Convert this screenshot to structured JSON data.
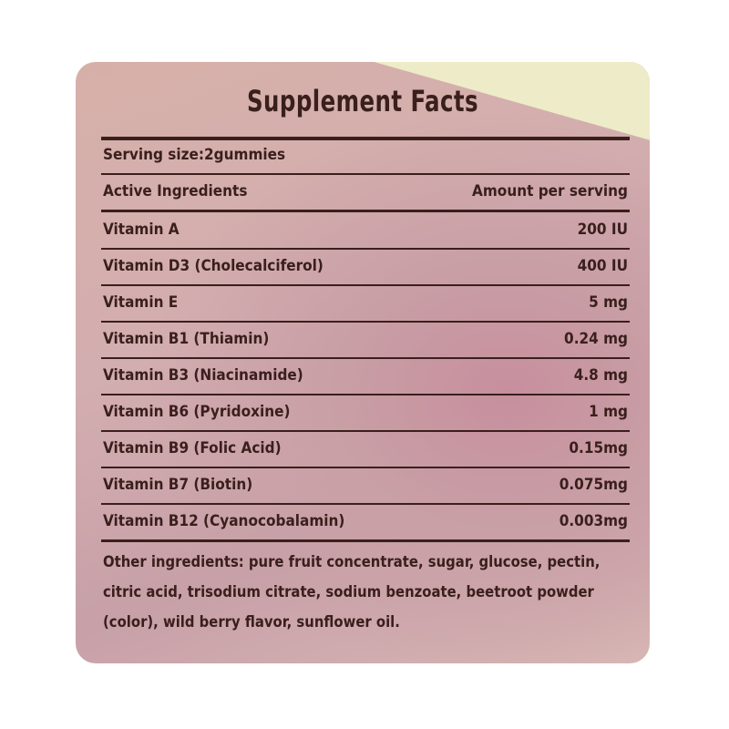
{
  "title": "Supplement Facts",
  "serving_size": "Serving size:2gummies",
  "header": {
    "ingredient": "Active Ingredients",
    "amount": "Amount per serving"
  },
  "ingredients": [
    {
      "name": "Vitamin A",
      "amount": "200 IU"
    },
    {
      "name": "Vitamin D3 (Cholecalciferol)",
      "amount": "400 IU"
    },
    {
      "name": "Vitamin E",
      "amount": "5 mg"
    },
    {
      "name": "Vitamin B1 (Thiamin)",
      "amount": "0.24 mg"
    },
    {
      "name": "Vitamin B3 (Niacinamide)",
      "amount": "4.8 mg"
    },
    {
      "name": "Vitamin B6 (Pyridoxine)",
      "amount": "1 mg"
    },
    {
      "name": "Vitamin B9 (Folic Acid)",
      "amount": "0.15mg"
    },
    {
      "name": "Vitamin B7 (Biotin)",
      "amount": "0.075mg"
    },
    {
      "name": "Vitamin B12 (Cyanocobalamin)",
      "amount": "0.003mg"
    }
  ],
  "other_ingredients": "Other ingredients: pure fruit concentrate, sugar, glucose, pectin, citric acid, trisodium citrate, sodium benzoate, beetroot powder (color), wild berry flavor, sunflower oil.",
  "colors": {
    "ink": "#3a1f1c",
    "label": "#d3aeb0",
    "flap": "#eeebc9"
  }
}
